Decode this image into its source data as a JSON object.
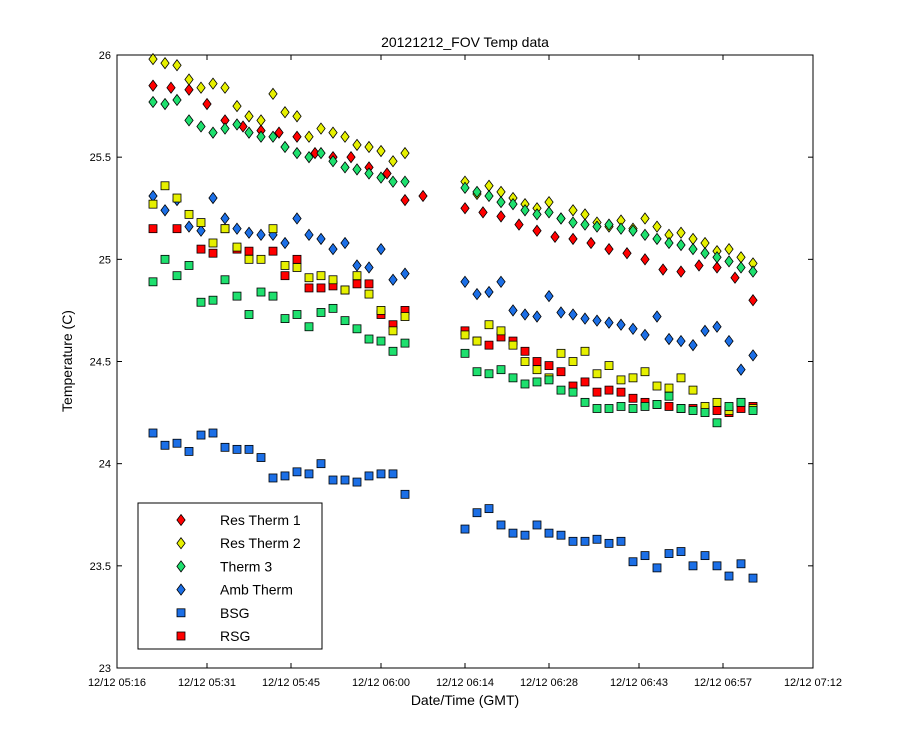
{
  "chart_data": {
    "type": "scatter",
    "title": "20121212_FOV Temp data",
    "xlabel": "Date/Time (GMT)",
    "ylabel": "Temperature (C)",
    "x_unit": "minutes",
    "xlim": [
      316,
      432
    ],
    "ylim": [
      23,
      26
    ],
    "x_ticks": [
      {
        "v": 316,
        "label": "12/12 05:16"
      },
      {
        "v": 331,
        "label": "12/12 05:31"
      },
      {
        "v": 345,
        "label": "12/12 05:45"
      },
      {
        "v": 360,
        "label": "12/12 06:00"
      },
      {
        "v": 374,
        "label": "12/12 06:14"
      },
      {
        "v": 388,
        "label": "12/12 06:28"
      },
      {
        "v": 403,
        "label": "12/12 06:43"
      },
      {
        "v": 417,
        "label": "12/12 06:57"
      },
      {
        "v": 432,
        "label": "12/12 07:12"
      }
    ],
    "y_ticks": [
      {
        "v": 23,
        "label": "23"
      },
      {
        "v": 23.5,
        "label": "23.5"
      },
      {
        "v": 24,
        "label": "24"
      },
      {
        "v": 24.5,
        "label": "24.5"
      },
      {
        "v": 25,
        "label": "25"
      },
      {
        "v": 25.5,
        "label": "25.5"
      },
      {
        "v": 26,
        "label": "26"
      }
    ],
    "grid": false,
    "legend_position": "bottom-left",
    "series": [
      {
        "name": "Res Therm 1",
        "marker": "diamond",
        "color": "#ff0000",
        "x": [
          322,
          325,
          328,
          331,
          334,
          337,
          340,
          343,
          346,
          349,
          352,
          355,
          358,
          361,
          364,
          367,
          374,
          377,
          380,
          383,
          386,
          389,
          392,
          395,
          398,
          401,
          404,
          407,
          410,
          413,
          416,
          419,
          422
        ],
        "y": [
          25.85,
          25.84,
          25.83,
          25.76,
          25.68,
          25.65,
          25.63,
          25.62,
          25.6,
          25.52,
          25.5,
          25.5,
          25.45,
          25.42,
          25.29,
          25.31,
          25.25,
          25.23,
          25.21,
          25.17,
          25.14,
          25.11,
          25.1,
          25.08,
          25.05,
          25.03,
          25.0,
          24.95,
          24.94,
          24.97,
          24.96,
          24.91,
          24.8
        ]
      },
      {
        "name": "Res Therm 2",
        "marker": "diamond",
        "color": "#e6f000",
        "x": [
          322,
          324,
          326,
          328,
          330,
          332,
          334,
          336,
          338,
          340,
          342,
          344,
          346,
          348,
          350,
          352,
          354,
          356,
          358,
          360,
          362,
          364,
          374,
          376,
          378,
          380,
          382,
          384,
          386,
          388,
          390,
          392,
          394,
          396,
          398,
          400,
          402,
          404,
          406,
          408,
          410,
          412,
          414,
          416,
          418,
          420,
          422
        ],
        "y": [
          25.98,
          25.96,
          25.95,
          25.88,
          25.84,
          25.86,
          25.84,
          25.75,
          25.7,
          25.68,
          25.81,
          25.72,
          25.7,
          25.6,
          25.64,
          25.62,
          25.6,
          25.56,
          25.55,
          25.53,
          25.48,
          25.52,
          25.38,
          25.32,
          25.36,
          25.33,
          25.3,
          25.27,
          25.25,
          25.28,
          25.2,
          25.24,
          25.22,
          25.18,
          25.16,
          25.19,
          25.15,
          25.2,
          25.16,
          25.12,
          25.13,
          25.1,
          25.08,
          25.04,
          25.05,
          25.01,
          24.98
        ]
      },
      {
        "name": "Therm 3",
        "marker": "diamond",
        "color": "#1ee06e",
        "x": [
          322,
          324,
          326,
          328,
          330,
          332,
          334,
          336,
          338,
          340,
          342,
          344,
          346,
          348,
          350,
          352,
          354,
          356,
          358,
          360,
          362,
          364,
          374,
          376,
          378,
          380,
          382,
          384,
          386,
          388,
          390,
          392,
          394,
          396,
          398,
          400,
          402,
          404,
          406,
          408,
          410,
          412,
          414,
          416,
          418,
          420,
          422
        ],
        "y": [
          25.77,
          25.76,
          25.78,
          25.68,
          25.65,
          25.62,
          25.64,
          25.66,
          25.62,
          25.6,
          25.6,
          25.55,
          25.52,
          25.5,
          25.52,
          25.48,
          25.45,
          25.44,
          25.42,
          25.4,
          25.38,
          25.38,
          25.35,
          25.33,
          25.31,
          25.28,
          25.27,
          25.24,
          25.22,
          25.23,
          25.2,
          25.18,
          25.17,
          25.16,
          25.17,
          25.15,
          25.14,
          25.12,
          25.1,
          25.08,
          25.07,
          25.05,
          25.03,
          25.01,
          24.99,
          24.96,
          24.94
        ]
      },
      {
        "name": "Amb Therm",
        "marker": "diamond",
        "color": "#1c6fe6",
        "x": [
          322,
          324,
          326,
          328,
          330,
          332,
          334,
          336,
          338,
          340,
          342,
          344,
          346,
          348,
          350,
          352,
          354,
          356,
          358,
          360,
          362,
          364,
          374,
          376,
          378,
          380,
          382,
          384,
          386,
          388,
          390,
          392,
          394,
          396,
          398,
          400,
          402,
          404,
          406,
          408,
          410,
          412,
          414,
          416,
          418,
          420,
          422
        ],
        "y": [
          25.31,
          25.24,
          25.29,
          25.16,
          25.14,
          25.3,
          25.2,
          25.15,
          25.13,
          25.12,
          25.12,
          25.08,
          25.2,
          25.12,
          25.1,
          25.05,
          25.08,
          24.97,
          24.96,
          25.05,
          24.9,
          24.93,
          24.89,
          24.83,
          24.84,
          24.89,
          24.75,
          24.73,
          24.72,
          24.82,
          24.74,
          24.73,
          24.71,
          24.7,
          24.69,
          24.68,
          24.66,
          24.63,
          24.72,
          24.61,
          24.6,
          24.58,
          24.65,
          24.67,
          24.6,
          24.46,
          24.53
        ]
      },
      {
        "name": "BSG",
        "marker": "square",
        "color": "#1c6fe6",
        "x": [
          322,
          324,
          326,
          328,
          330,
          332,
          334,
          336,
          338,
          340,
          342,
          344,
          346,
          348,
          350,
          352,
          354,
          356,
          358,
          360,
          362,
          364,
          374,
          376,
          378,
          380,
          382,
          384,
          386,
          388,
          390,
          392,
          394,
          396,
          398,
          400,
          402,
          404,
          406,
          408,
          410,
          412,
          414,
          416,
          418,
          420,
          422
        ],
        "y": [
          24.15,
          24.09,
          24.1,
          24.06,
          24.14,
          24.15,
          24.08,
          24.07,
          24.07,
          24.03,
          23.93,
          23.94,
          23.96,
          23.95,
          24.0,
          23.92,
          23.92,
          23.91,
          23.94,
          23.95,
          23.95,
          23.85,
          23.68,
          23.76,
          23.78,
          23.7,
          23.66,
          23.65,
          23.7,
          23.66,
          23.65,
          23.62,
          23.62,
          23.63,
          23.61,
          23.62,
          23.52,
          23.55,
          23.49,
          23.56,
          23.57,
          23.5,
          23.55,
          23.5,
          23.45,
          23.51,
          23.44
        ]
      },
      {
        "name": "RSG",
        "marker": "square",
        "color": "#ff0000",
        "x": [
          322,
          326,
          330,
          332,
          334,
          336,
          338,
          342,
          344,
          346,
          348,
          350,
          352,
          354,
          356,
          358,
          360,
          362,
          364,
          374,
          376,
          378,
          380,
          382,
          384,
          386,
          388,
          390,
          392,
          394,
          396,
          398,
          400,
          402,
          404,
          406,
          408,
          410,
          412,
          414,
          416,
          418,
          420,
          422
        ],
        "y": [
          25.15,
          25.15,
          25.05,
          25.03,
          25.15,
          25.05,
          25.04,
          25.04,
          24.92,
          25.0,
          24.86,
          24.86,
          24.87,
          24.85,
          24.88,
          24.88,
          24.73,
          24.68,
          24.75,
          24.65,
          24.6,
          24.58,
          24.62,
          24.6,
          24.55,
          24.5,
          24.48,
          24.45,
          24.38,
          24.4,
          24.35,
          24.36,
          24.35,
          24.32,
          24.3,
          24.29,
          24.28,
          24.27,
          24.27,
          24.26,
          24.26,
          24.25,
          24.27,
          24.28
        ]
      },
      {
        "name": "",
        "marker": "square",
        "color": "#e6f000",
        "x": [
          322,
          324,
          326,
          328,
          330,
          332,
          334,
          336,
          338,
          340,
          342,
          344,
          346,
          348,
          350,
          352,
          354,
          356,
          358,
          360,
          362,
          364,
          374,
          376,
          378,
          380,
          382,
          384,
          386,
          388,
          390,
          392,
          394,
          396,
          398,
          400,
          402,
          404,
          406,
          408,
          410,
          412,
          414,
          416,
          418,
          420,
          422
        ],
        "y": [
          25.27,
          25.36,
          25.3,
          25.22,
          25.18,
          25.08,
          25.15,
          25.06,
          25.0,
          25.0,
          25.15,
          24.97,
          24.96,
          24.91,
          24.92,
          24.9,
          24.85,
          24.92,
          24.83,
          24.75,
          24.65,
          24.72,
          24.63,
          24.6,
          24.68,
          24.65,
          24.58,
          24.5,
          24.46,
          24.42,
          24.54,
          24.5,
          24.55,
          24.44,
          24.48,
          24.41,
          24.42,
          24.45,
          24.38,
          24.37,
          24.42,
          24.36,
          24.28,
          24.3,
          24.26,
          24.3,
          24.27
        ]
      },
      {
        "name": "",
        "marker": "square",
        "color": "#1ee06e",
        "x": [
          322,
          324,
          326,
          328,
          330,
          332,
          334,
          336,
          338,
          340,
          342,
          344,
          346,
          348,
          350,
          352,
          354,
          356,
          358,
          360,
          362,
          364,
          374,
          376,
          378,
          380,
          382,
          384,
          386,
          388,
          390,
          392,
          394,
          396,
          398,
          400,
          402,
          404,
          406,
          408,
          410,
          412,
          414,
          416,
          418,
          420,
          422
        ],
        "y": [
          24.89,
          25.0,
          24.92,
          24.97,
          24.79,
          24.8,
          24.9,
          24.82,
          24.73,
          24.84,
          24.82,
          24.71,
          24.73,
          24.67,
          24.74,
          24.76,
          24.7,
          24.66,
          24.61,
          24.6,
          24.55,
          24.59,
          24.54,
          24.45,
          24.44,
          24.46,
          24.42,
          24.39,
          24.4,
          24.41,
          24.36,
          24.35,
          24.3,
          24.27,
          24.27,
          24.28,
          24.27,
          24.28,
          24.29,
          24.33,
          24.27,
          24.26,
          24.25,
          24.2,
          24.28,
          24.3,
          24.26
        ]
      }
    ]
  }
}
